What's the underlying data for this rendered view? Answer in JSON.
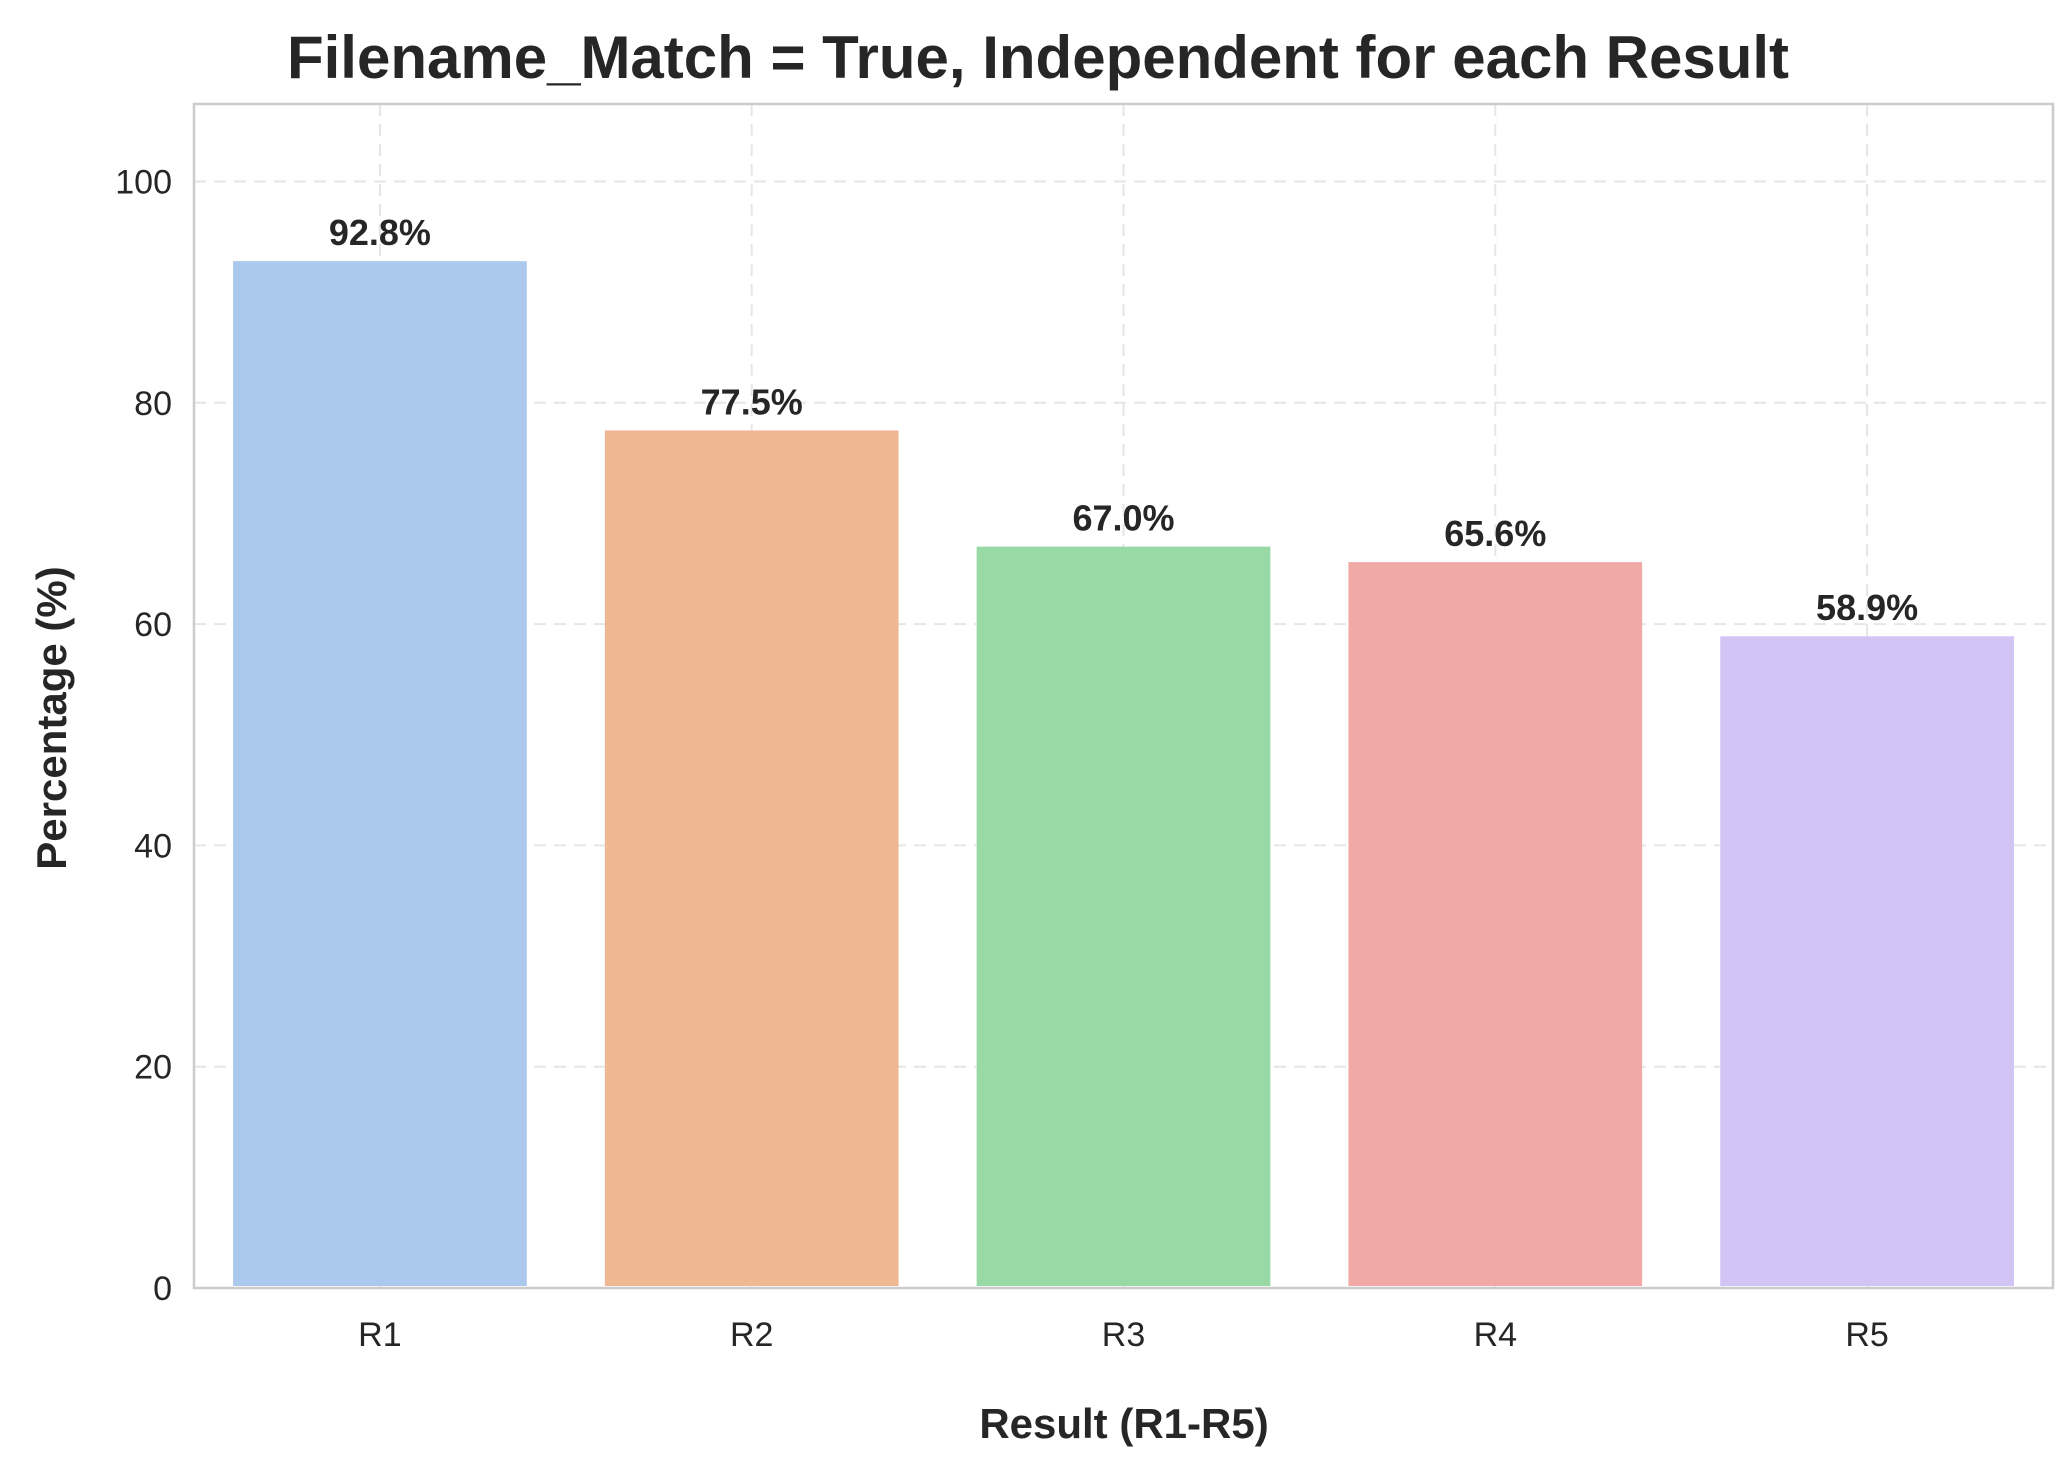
{
  "chart_data": {
    "type": "bar",
    "title": "Filename_Match = True, Independent for each Result",
    "xlabel": "Result (R1-R5)",
    "ylabel": "Percentage (%)",
    "categories": [
      "R1",
      "R2",
      "R3",
      "R4",
      "R5"
    ],
    "values": [
      92.8,
      77.5,
      67.0,
      65.6,
      58.9
    ],
    "data_labels": [
      "92.8%",
      "77.5%",
      "67.0%",
      "65.6%",
      "58.9%"
    ],
    "colors": [
      "#abc9ed",
      "#f0b793",
      "#98d9a6",
      "#f1a9a8",
      "#d2c4f5"
    ],
    "ylim": [
      0,
      107
    ],
    "yticks": [
      0,
      20,
      40,
      60,
      80,
      100
    ],
    "grid": true,
    "grid_style": "dashed"
  }
}
